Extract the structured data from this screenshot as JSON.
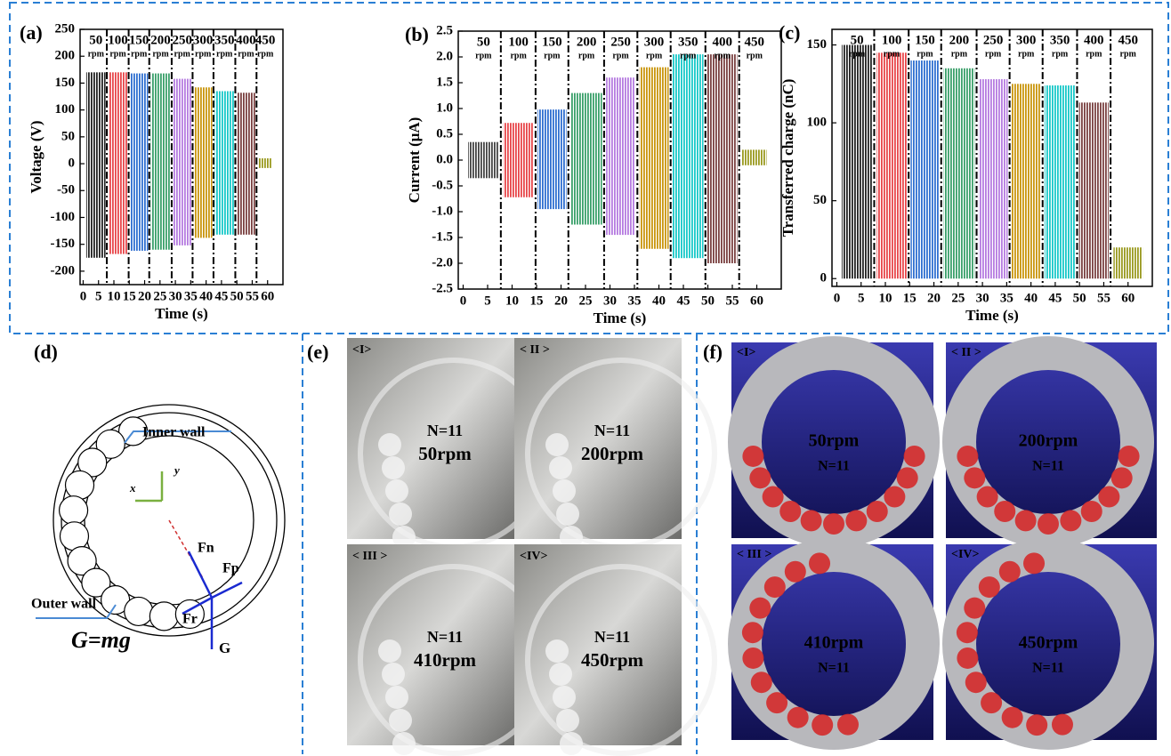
{
  "chart_data": [
    {
      "type": "band",
      "panel_label": "(a)",
      "ylabel": "Voltage (V)",
      "xlabel": "Time (s)",
      "unit_label": "rpm",
      "xlim": [
        -1,
        65
      ],
      "xticks": [
        0,
        5,
        10,
        15,
        20,
        25,
        30,
        35,
        40,
        45,
        50,
        55,
        60
      ],
      "ylim": [
        -225,
        250
      ],
      "yticks": [
        -200,
        -150,
        -100,
        -50,
        0,
        50,
        100,
        150,
        200,
        250
      ],
      "dividers": [
        7.7,
        14.8,
        21.5,
        28.8,
        35.6,
        42.4,
        49.5,
        56.4
      ],
      "series": [
        {
          "name": "50",
          "color": "#222222",
          "x": [
            1,
            7.3
          ],
          "max": 170,
          "min": -175
        },
        {
          "name": "100",
          "color": "#e8464a",
          "x": [
            8.2,
            14.4
          ],
          "max": 170,
          "min": -168
        },
        {
          "name": "150",
          "color": "#2f6fd0",
          "x": [
            15.2,
            21.1
          ],
          "max": 168,
          "min": -162
        },
        {
          "name": "200",
          "color": "#3aa06a",
          "x": [
            22,
            28.4
          ],
          "max": 168,
          "min": -160
        },
        {
          "name": "250",
          "color": "#b57be0",
          "x": [
            29.2,
            35.2
          ],
          "max": 158,
          "min": -152
        },
        {
          "name": "300",
          "color": "#c9950c",
          "x": [
            36,
            42
          ],
          "max": 142,
          "min": -138
        },
        {
          "name": "350",
          "color": "#17c8c8",
          "x": [
            42.8,
            49.1
          ],
          "max": 135,
          "min": -132
        },
        {
          "name": "400",
          "color": "#7a4040",
          "x": [
            49.9,
            56
          ],
          "max": 132,
          "min": -132
        },
        {
          "name": "450",
          "color": "#9a9a20",
          "x": [
            57,
            61.5
          ],
          "max": 10,
          "min": -8
        }
      ]
    },
    {
      "type": "band",
      "panel_label": "(b)",
      "ylabel": "Current (μA)",
      "xlabel": "Time (s)",
      "unit_label": "rpm",
      "xlim": [
        -1,
        65
      ],
      "xticks": [
        0,
        5,
        10,
        15,
        20,
        25,
        30,
        35,
        40,
        45,
        50,
        55,
        60
      ],
      "ylim": [
        -2.5,
        2.5
      ],
      "yticks": [
        -2.5,
        {
          "value": -2,
          "label": "-2.0"
        },
        -1.5,
        {
          "value": -1,
          "label": "-1.0"
        },
        -0.5,
        {
          "value": 0,
          "label": "0.0"
        },
        0.5,
        {
          "value": 1,
          "label": "1.0"
        },
        1.5,
        {
          "value": 2,
          "label": "2.0"
        },
        2.5
      ],
      "dividers": [
        7.7,
        14.8,
        21.5,
        28.8,
        35.6,
        42.4,
        49.5,
        56.4
      ],
      "series": [
        {
          "name": "50",
          "color": "#444444",
          "x": [
            1,
            7.3
          ],
          "max": 0.35,
          "min": -0.35
        },
        {
          "name": "100",
          "color": "#e8464a",
          "x": [
            8.2,
            14.4
          ],
          "max": 0.72,
          "min": -0.72
        },
        {
          "name": "150",
          "color": "#2f6fd0",
          "x": [
            15.2,
            21.1
          ],
          "max": 0.98,
          "min": -0.95
        },
        {
          "name": "200",
          "color": "#3aa06a",
          "x": [
            22,
            28.4
          ],
          "max": 1.3,
          "min": -1.25
        },
        {
          "name": "250",
          "color": "#b57be0",
          "x": [
            29.2,
            35.2
          ],
          "max": 1.6,
          "min": -1.45
        },
        {
          "name": "300",
          "color": "#c9950c",
          "x": [
            36,
            42
          ],
          "max": 1.8,
          "min": -1.72
        },
        {
          "name": "350",
          "color": "#17c8c8",
          "x": [
            42.8,
            49.1
          ],
          "max": 2.05,
          "min": -1.9
        },
        {
          "name": "400",
          "color": "#7a4040",
          "x": [
            49.9,
            56
          ],
          "max": 2.05,
          "min": -2
        },
        {
          "name": "450",
          "color": "#9a9a20",
          "x": [
            57,
            62
          ],
          "max": 0.2,
          "min": -0.1
        }
      ]
    },
    {
      "type": "band",
      "panel_label": "(c)",
      "ylabel": "Transferred charge (nC)",
      "xlabel": "Time (s)",
      "unit_label": "rpm",
      "xlim": [
        -1,
        65
      ],
      "xticks": [
        0,
        5,
        10,
        15,
        20,
        25,
        30,
        35,
        40,
        45,
        50,
        55,
        60
      ],
      "ylim": [
        -5,
        160
      ],
      "yticks": [
        0,
        50,
        100,
        150
      ],
      "dividers": [
        7.7,
        14.8,
        21.5,
        28.8,
        35.6,
        42.4,
        49.5,
        56.4
      ],
      "series": [
        {
          "name": "50",
          "color": "#222222",
          "x": [
            1,
            7.3
          ],
          "max": 150,
          "min": 0
        },
        {
          "name": "100",
          "color": "#e8464a",
          "x": [
            8.2,
            14.4
          ],
          "max": 145,
          "min": 0
        },
        {
          "name": "150",
          "color": "#2f6fd0",
          "x": [
            15.2,
            21.1
          ],
          "max": 140,
          "min": 0
        },
        {
          "name": "200",
          "color": "#3aa06a",
          "x": [
            22,
            28.4
          ],
          "max": 135,
          "min": 0
        },
        {
          "name": "250",
          "color": "#b57be0",
          "x": [
            29.2,
            35.2
          ],
          "max": 128,
          "min": 0
        },
        {
          "name": "300",
          "color": "#c9950c",
          "x": [
            36,
            42
          ],
          "max": 125,
          "min": 0
        },
        {
          "name": "350",
          "color": "#17c8c8",
          "x": [
            42.8,
            49.1
          ],
          "max": 124,
          "min": 0
        },
        {
          "name": "400",
          "color": "#7a4040",
          "x": [
            49.9,
            56
          ],
          "max": 113,
          "min": 0
        },
        {
          "name": "450",
          "color": "#9a9a20",
          "x": [
            57,
            63
          ],
          "max": 20,
          "min": 0
        }
      ]
    }
  ],
  "panels": {
    "d": {
      "label": "(d)",
      "inner_wall": "Inner wall",
      "outer_wall": "Outer wall",
      "axis_x": "x",
      "axis_y": "y",
      "force_n": "Fn",
      "force_p": "Fp",
      "force_r": "Fr",
      "force_g": "G",
      "gravity": "G=mg"
    },
    "e": {
      "label": "(e)",
      "images": [
        {
          "tag": "<I>",
          "count": "N=11",
          "speed": "50rpm"
        },
        {
          "tag": "< II >",
          "count": "N=11",
          "speed": "200rpm"
        },
        {
          "tag": "< III >",
          "count": "N=11",
          "speed": "410rpm"
        },
        {
          "tag": "<IV>",
          "count": "N=11",
          "speed": "450rpm"
        }
      ]
    },
    "f": {
      "label": "(f)",
      "images": [
        {
          "tag": "<I>",
          "speed": "50rpm",
          "count": "N=11"
        },
        {
          "tag": "< II >",
          "speed": "200rpm",
          "count": "N=11"
        },
        {
          "tag": "< III >",
          "speed": "410rpm",
          "count": "N=11"
        },
        {
          "tag": "<IV>",
          "speed": "450rpm",
          "count": "N=11"
        }
      ]
    }
  }
}
